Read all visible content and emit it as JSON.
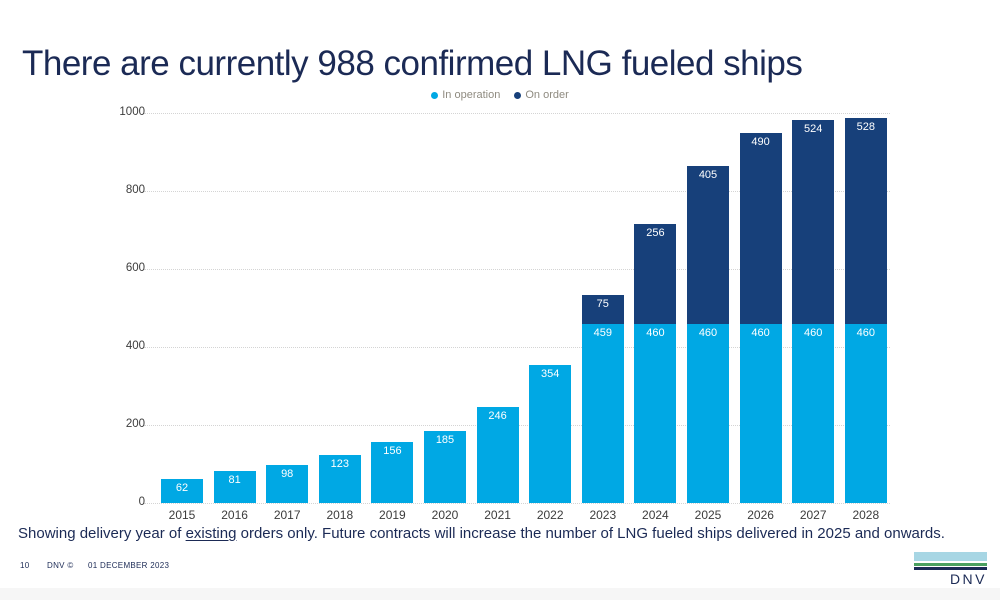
{
  "slide": {
    "title": "There are currently 988 confirmed LNG fueled ships",
    "note": {
      "prefix": "Showing delivery year of ",
      "underlined": "existing",
      "suffix": " orders only. Future contracts will increase the number of LNG fueled ships delivered in 2025 and onwards."
    },
    "footer": {
      "page_number": "10",
      "brand": "DNV ©",
      "date": "01 DECEMBER 2023",
      "logo_text": "DNV"
    }
  },
  "colors": {
    "in_operation": "#00a8e4",
    "on_order": "#17407a",
    "title_navy": "#1b2a55",
    "legend_text": "#8f8b80",
    "grid": "#d4d4d4",
    "axis_text": "#3c3c3c",
    "bar_label": "#ffffff",
    "logo_lightblue": "#a7d6e4",
    "logo_green": "#4aa05f",
    "logo_navy": "#1b2a55"
  },
  "chart_data": {
    "type": "bar",
    "stacked": true,
    "title": "",
    "xlabel": "",
    "ylabel": "",
    "categories": [
      "2015",
      "2016",
      "2017",
      "2018",
      "2019",
      "2020",
      "2021",
      "2022",
      "2023",
      "2024",
      "2025",
      "2026",
      "2027",
      "2028"
    ],
    "series": [
      {
        "name": "In operation",
        "color_key": "in_operation",
        "values": [
          62,
          81,
          98,
          123,
          156,
          185,
          246,
          354,
          459,
          460,
          460,
          460,
          460,
          460
        ]
      },
      {
        "name": "On order",
        "color_key": "on_order",
        "values": [
          0,
          0,
          0,
          0,
          0,
          0,
          0,
          0,
          75,
          256,
          405,
          490,
          524,
          528
        ]
      }
    ],
    "ylim": [
      0,
      1000
    ],
    "yticks": [
      0,
      200,
      400,
      600,
      800,
      1000
    ],
    "legend_position": "top-center",
    "grid": "dotted-horizontal",
    "value_labels": "inside-top-of-segment"
  }
}
